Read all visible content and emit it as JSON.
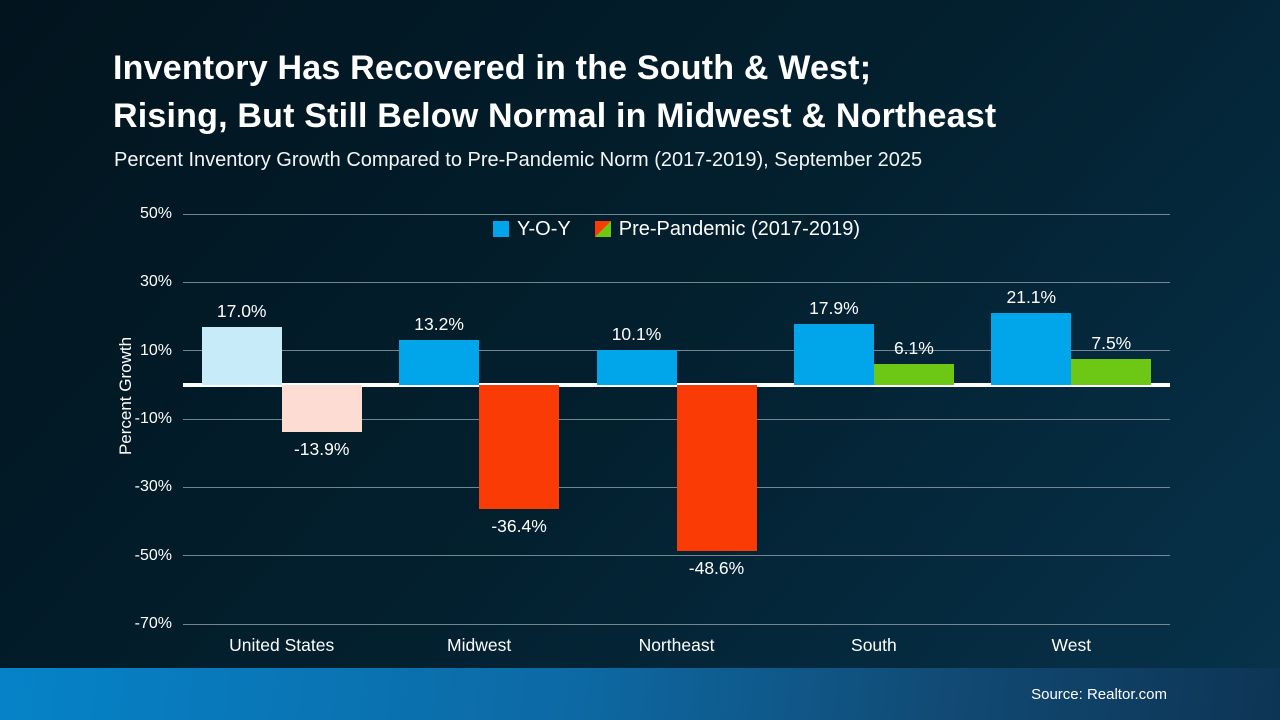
{
  "header": {
    "title_line1": "Inventory Has Recovered in the South & West;",
    "title_line2": "Rising, But Still Below Normal in Midwest & Northeast",
    "subtitle": "Percent Inventory Growth Compared to Pre-Pandemic Norm (2017-2019), September 2025"
  },
  "chart_data": {
    "type": "bar",
    "title": "Inventory Has Recovered in the South & West; Rising, But Still Below Normal in Midwest & Northeast",
    "subtitle": "Percent Inventory Growth Compared to Pre-Pandemic Norm (2017-2019), September 2025",
    "categories": [
      "United States",
      "Midwest",
      "Northeast",
      "South",
      "West"
    ],
    "series": [
      {
        "name": "Y-O-Y",
        "values": [
          17.0,
          13.2,
          10.1,
          17.9,
          21.1
        ]
      },
      {
        "name": "Pre-Pandemic (2017-2019)",
        "values": [
          -13.9,
          -36.4,
          -48.6,
          6.1,
          7.5
        ]
      }
    ],
    "value_labels": [
      [
        "17.0%",
        "13.2%",
        "10.1%",
        "17.9%",
        "21.1%"
      ],
      [
        "-13.9%",
        "-36.4%",
        "-48.6%",
        "6.1%",
        "7.5%"
      ]
    ],
    "xlabel": "",
    "ylabel": "Percent Growth",
    "ylim": [
      -70,
      50
    ],
    "yticks": [
      {
        "label": "50%",
        "value": 50
      },
      {
        "label": "30%",
        "value": 30
      },
      {
        "label": "10%",
        "value": 10
      },
      {
        "label": "-10%",
        "value": -10
      },
      {
        "label": "-30%",
        "value": -30
      },
      {
        "label": "-50%",
        "value": -50
      },
      {
        "label": "-70%",
        "value": -70
      }
    ],
    "grid": true,
    "legend_position": "top-center",
    "muted_categories": [
      "United States"
    ],
    "colors": {
      "yoy": "#00a6e9",
      "yoy_muted": "#c8ebfa",
      "pre_pandemic_positive": "#6dc715",
      "pre_pandemic_negative": "#fb3b05",
      "pre_pandemic_negative_muted": "#fcdcd3",
      "grid": "#98a8b2",
      "zero_line": "#ffffff",
      "label_text": "#ffffff"
    }
  },
  "footer": {
    "source": "Source: Realtor.com"
  }
}
